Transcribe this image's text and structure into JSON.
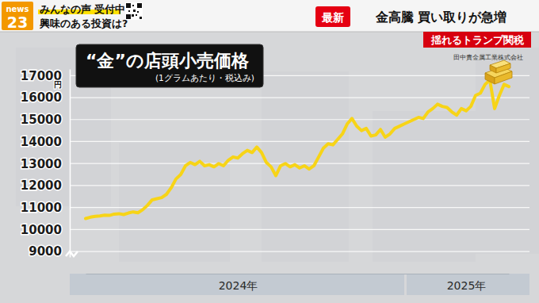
{
  "header": {
    "logo": [
      "news",
      "23"
    ],
    "corner": [
      "みんなの声 受付中",
      "興味のある投資は?"
    ],
    "badge": "最新",
    "headline": "金高騰 買い取りが急増",
    "tag": "揺れるトランプ関税"
  },
  "chart_data": {
    "type": "line",
    "title": "“金”の店頭小売価格",
    "subtitle": "(1グラムあたり・税込み)",
    "source": "田中貴金属工業株式会社",
    "ylabel": "円",
    "categories": [
      null,
      null,
      null,
      null,
      null,
      null,
      null,
      null,
      null,
      null,
      null,
      null,
      null,
      null,
      null,
      null,
      null,
      null,
      null,
      null,
      null,
      null,
      null,
      null,
      null,
      null,
      null,
      null,
      null,
      null,
      null,
      null,
      "2024年",
      null,
      null,
      null,
      null,
      null,
      null,
      null,
      null,
      null,
      null,
      null,
      null,
      null,
      null,
      null,
      null,
      null,
      null,
      null,
      null,
      null,
      null,
      null,
      null,
      null,
      null,
      null,
      null,
      null,
      null,
      null,
      null,
      null,
      null,
      null,
      null,
      null,
      null,
      null,
      null,
      null,
      null,
      null,
      null,
      null,
      null,
      null,
      "2025年",
      null,
      null,
      null,
      null,
      null,
      null,
      null,
      null,
      null
    ],
    "values": [
      10500,
      10560,
      10600,
      10620,
      10650,
      10640,
      10700,
      10720,
      10680,
      10750,
      10800,
      10760,
      10900,
      11100,
      11350,
      11400,
      11450,
      11600,
      11900,
      12300,
      12500,
      12900,
      13050,
      12950,
      13100,
      12900,
      12950,
      12850,
      13000,
      12900,
      13150,
      13300,
      13250,
      13450,
      13600,
      13500,
      13750,
      13500,
      13050,
      12850,
      12450,
      12900,
      13000,
      12850,
      12950,
      12800,
      12900,
      12750,
      12900,
      13300,
      13700,
      13900,
      13850,
      14100,
      14350,
      14800,
      15050,
      14700,
      14500,
      14600,
      14250,
      14300,
      14550,
      14200,
      14350,
      14600,
      14700,
      14800,
      14900,
      15000,
      15100,
      15050,
      15350,
      15500,
      15700,
      15600,
      15550,
      15350,
      15200,
      15500,
      15400,
      15600,
      16100,
      16200,
      16600,
      16800,
      15500,
      16100,
      16600,
      16500
    ],
    "color": "#f7d417",
    "ylim": [
      8750,
      17300
    ],
    "yticks": [
      9000,
      10000,
      11000,
      12000,
      13000,
      14000,
      15000,
      16000,
      17000
    ],
    "grid": true
  }
}
